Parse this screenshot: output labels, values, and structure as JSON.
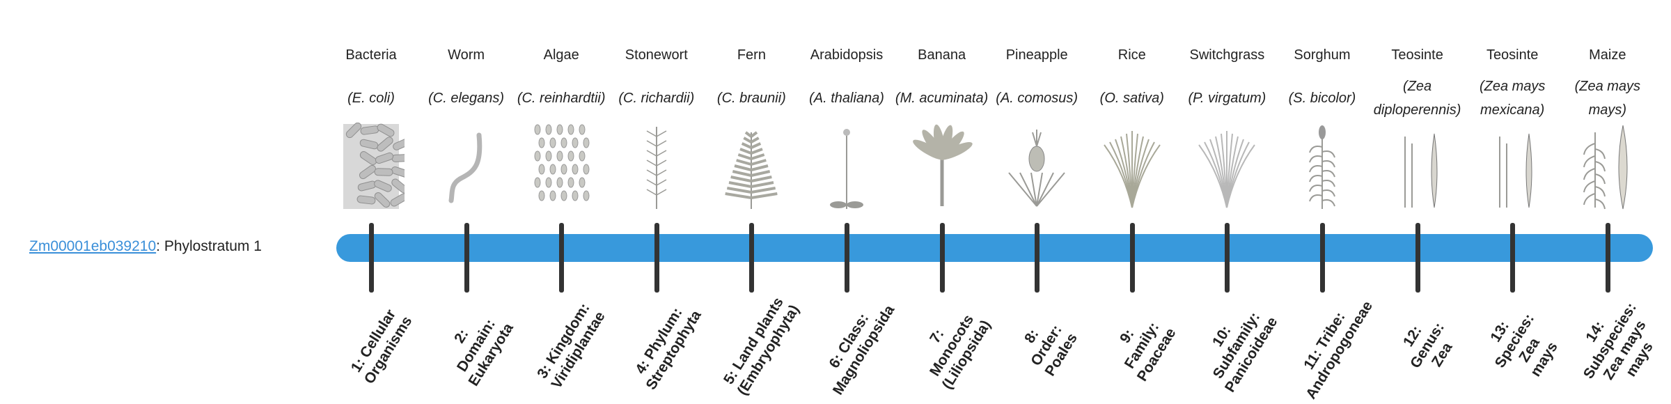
{
  "gene": {
    "id": "Zm00001eb039210",
    "suffix": ": Phylostratum 1"
  },
  "colors": {
    "bar": "#3899dc",
    "tick": "#333333",
    "link": "#3a8fd9"
  },
  "current_phylostratum": 1,
  "strata": [
    {
      "name": "Bacteria",
      "species": "(E. coli)",
      "icon": "bacteria-icon",
      "rank": "1: Cellular Organisms"
    },
    {
      "name": "Worm",
      "species": "(C. elegans)",
      "icon": "worm-icon",
      "rank": "2: Domain: Eukaryota"
    },
    {
      "name": "Algae",
      "species": "(C. reinhardtii)",
      "icon": "algae-icon",
      "rank": "3: Kingdom: Viridiplantae"
    },
    {
      "name": "Stonewort",
      "species": "(C. richardii)",
      "icon": "stonewort-icon",
      "rank": "4: Phylum: Streptophyta"
    },
    {
      "name": "Fern",
      "species": "(C. braunii)",
      "icon": "fern-icon",
      "rank": "5: Land plants (Embryophyta)"
    },
    {
      "name": "Arabidopsis",
      "species": "(A. thaliana)",
      "icon": "arabidopsis-icon",
      "rank": "6: Class: Magnoliopsida"
    },
    {
      "name": "Banana",
      "species": "(M. acuminata)",
      "icon": "banana-icon",
      "rank": "7: Monocots (Liliopsida)"
    },
    {
      "name": "Pineapple",
      "species": "(A. comosus)",
      "icon": "pineapple-icon",
      "rank": "8: Order: Poales"
    },
    {
      "name": "Rice",
      "species": "(O. sativa)",
      "icon": "rice-icon",
      "rank": "9: Family: Poaceae"
    },
    {
      "name": "Switchgrass",
      "species": "(P. virgatum)",
      "icon": "switchgrass-icon",
      "rank": "10: Subfamily: Panicoideae"
    },
    {
      "name": "Sorghum",
      "species": "(S. bicolor)",
      "icon": "sorghum-icon",
      "rank": "11: Tribe: Andropogoneae"
    },
    {
      "name": "Teosinte",
      "species": "(Zea diploperennis)",
      "icon": "teosinte-icon",
      "rank": "12: Genus: Zea"
    },
    {
      "name": "Teosinte",
      "species": "(Zea mays mexicana)",
      "icon": "teosinte-icon",
      "rank": "13: Species: Zea mays"
    },
    {
      "name": "Maize",
      "species": "(Zea mays mays)",
      "icon": "maize-icon",
      "rank": "14: Subspecies: Zea mays mays"
    }
  ]
}
